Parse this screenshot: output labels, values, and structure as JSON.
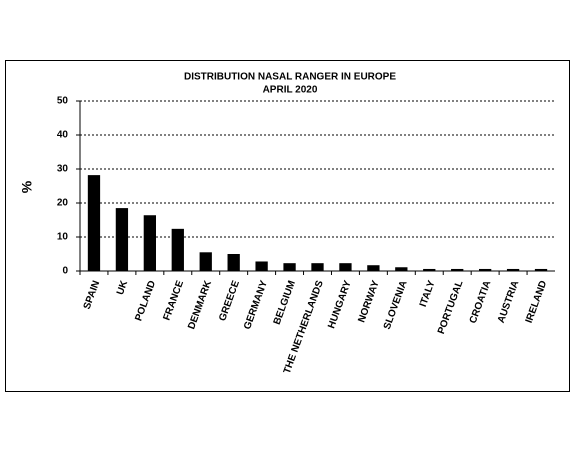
{
  "chart_data": {
    "type": "bar",
    "title": "DISTRIBUTION NASAL RANGER IN EUROPE",
    "subtitle": "APRIL 2020",
    "y_label": "%",
    "categories": [
      "SPAIN",
      "UK",
      "POLAND",
      "FRANCE",
      "DENMARK",
      "GREECE",
      "GERMANY",
      "BELGIUM",
      "THE NETHERLANDS",
      "HUNGARY",
      "NORWAY",
      "SLOVENIA",
      "ITALY",
      "PORTUGAL",
      "CROATIA",
      "AUSTRIA",
      "IRELAND"
    ],
    "values": [
      28.2,
      18.5,
      16.4,
      12.4,
      5.5,
      5.0,
      2.8,
      2.3,
      2.3,
      2.3,
      1.7,
      1.1,
      0.6,
      0.6,
      0.6,
      0.6,
      0.6
    ],
    "color": "#000000",
    "ylim": [
      0,
      50
    ],
    "yticks": [
      0,
      10,
      20,
      30,
      40,
      50
    ],
    "grid": true
  }
}
